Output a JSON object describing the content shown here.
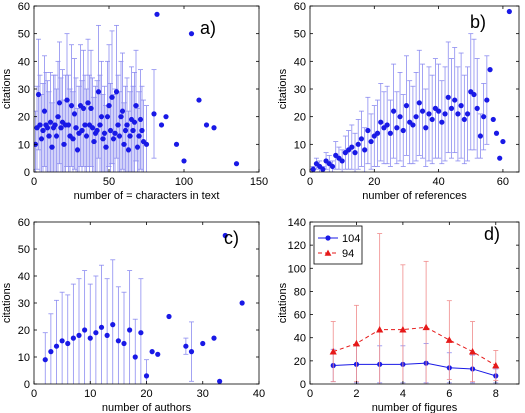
{
  "chart_data": [
    {
      "id": "a",
      "type": "scatter",
      "panel_label": "a)",
      "xlabel": "number of = characters in text",
      "ylabel": "citations",
      "xlim": [
        0,
        150
      ],
      "ylim": [
        0,
        60
      ],
      "xticks": [
        0,
        50,
        100,
        150
      ],
      "yticks": [
        0,
        10,
        20,
        30,
        40,
        50,
        60
      ],
      "series": [
        {
          "marker_color": "#1919e6",
          "err_color": "#8c8cf0",
          "x": [
            1,
            2,
            3,
            4,
            5,
            6,
            7,
            8,
            9,
            10,
            11,
            12,
            13,
            14,
            15,
            16,
            17,
            18,
            19,
            20,
            21,
            22,
            23,
            24,
            25,
            26,
            27,
            28,
            29,
            30,
            31,
            32,
            33,
            34,
            35,
            36,
            37,
            38,
            39,
            40,
            41,
            42,
            43,
            44,
            45,
            46,
            47,
            48,
            49,
            50,
            51,
            52,
            53,
            54,
            55,
            56,
            57,
            58,
            59,
            60,
            61,
            62,
            63,
            64,
            65,
            66,
            67,
            68,
            69,
            70,
            71,
            72,
            73,
            75,
            80,
            82,
            85,
            88,
            95,
            100,
            105,
            110,
            115,
            120,
            135
          ],
          "y": [
            10,
            16,
            28,
            17,
            12,
            15,
            22,
            17,
            16,
            13,
            18,
            9,
            16,
            17,
            13,
            20,
            25,
            16,
            18,
            10,
            17,
            26,
            17,
            13,
            24,
            12,
            21,
            16,
            8,
            14,
            24,
            15,
            23,
            17,
            13,
            25,
            17,
            23,
            16,
            11,
            14,
            15,
            29,
            17,
            20,
            12,
            14,
            9,
            20,
            24,
            15,
            27,
            12,
            14,
            29,
            17,
            13,
            20,
            22,
            10,
            15,
            17,
            8,
            13,
            19,
            15,
            18,
            24,
            9,
            13,
            19,
            15,
            11,
            10,
            21,
            57,
            17,
            20,
            10,
            4,
            50,
            26,
            17,
            16,
            3
          ],
          "err": [
            12,
            15,
            20,
            18,
            16,
            17,
            20,
            19,
            17,
            16,
            18,
            16,
            19,
            18,
            17,
            20,
            22,
            18,
            19,
            16,
            18,
            24,
            18,
            17,
            22,
            17,
            20,
            18,
            15,
            17,
            22,
            18,
            21,
            18,
            17,
            23,
            18,
            21,
            18,
            16,
            17,
            18,
            24,
            18,
            20,
            16,
            17,
            15,
            20,
            22,
            17,
            24,
            16,
            16,
            24,
            18,
            16,
            20,
            21,
            15,
            16,
            17,
            14,
            16,
            19,
            16,
            18,
            20,
            14,
            16,
            18,
            16,
            15,
            14,
            16,
            0,
            0,
            0,
            0,
            0,
            0,
            0,
            0,
            0,
            0
          ]
        }
      ]
    },
    {
      "id": "b",
      "type": "scatter",
      "panel_label": "b)",
      "xlabel": "number of references",
      "ylabel": "citations",
      "xlim": [
        0,
        65
      ],
      "ylim": [
        0,
        60
      ],
      "xticks": [
        0,
        20,
        40,
        60
      ],
      "yticks": [
        0,
        10,
        20,
        30,
        40,
        50,
        60
      ],
      "series": [
        {
          "marker_color": "#1919e6",
          "err_color": "#8c8cf0",
          "x": [
            1,
            2,
            3,
            4,
            5,
            6,
            7,
            8,
            9,
            10,
            11,
            12,
            13,
            14,
            15,
            16,
            17,
            18,
            19,
            20,
            21,
            22,
            23,
            24,
            25,
            26,
            27,
            28,
            29,
            30,
            31,
            32,
            33,
            34,
            35,
            36,
            37,
            38,
            39,
            40,
            41,
            42,
            43,
            44,
            45,
            46,
            47,
            48,
            49,
            50,
            51,
            52,
            53,
            54,
            55,
            56,
            57,
            58,
            59,
            60,
            62
          ],
          "y": [
            1,
            3,
            2,
            1,
            4,
            3,
            2,
            6,
            5,
            4,
            7,
            8,
            9,
            7,
            10,
            12,
            8,
            15,
            11,
            13,
            14,
            18,
            16,
            17,
            14,
            22,
            16,
            20,
            15,
            24,
            18,
            17,
            20,
            25,
            22,
            16,
            21,
            19,
            23,
            22,
            18,
            21,
            27,
            23,
            26,
            21,
            24,
            19,
            21,
            29,
            28,
            23,
            13,
            20,
            26,
            37,
            19,
            14,
            5,
            11,
            58
          ],
          "err": [
            1,
            2,
            2,
            1,
            3,
            3,
            2,
            5,
            4,
            4,
            6,
            7,
            8,
            7,
            9,
            10,
            8,
            12,
            10,
            11,
            12,
            14,
            13,
            14,
            12,
            17,
            13,
            16,
            13,
            18,
            15,
            14,
            16,
            19,
            17,
            14,
            17,
            16,
            18,
            17,
            15,
            17,
            20,
            18,
            19,
            17,
            19,
            16,
            17,
            21,
            20,
            18,
            8,
            12,
            16,
            0,
            0,
            0,
            0,
            0,
            0
          ]
        }
      ]
    },
    {
      "id": "c",
      "type": "scatter",
      "panel_label": "c)",
      "xlabel": "number of authors",
      "ylabel": "citations",
      "xlim": [
        0,
        40
      ],
      "ylim": [
        0,
        60
      ],
      "xticks": [
        0,
        10,
        20,
        30,
        40
      ],
      "yticks": [
        0,
        10,
        20,
        30,
        40,
        50,
        60
      ],
      "series": [
        {
          "marker_color": "#1919e6",
          "err_color": "#8c8cf0",
          "x": [
            2,
            3,
            4,
            5,
            6,
            7,
            8,
            9,
            10,
            11,
            12,
            13,
            14,
            15,
            16,
            17,
            18,
            19,
            20,
            21,
            22,
            24,
            27,
            28,
            30,
            32,
            33,
            34,
            37
          ],
          "y": [
            9,
            12,
            14,
            16,
            15,
            17,
            18,
            20,
            17,
            19,
            21,
            18,
            22,
            16,
            15,
            20,
            10,
            19,
            3,
            12,
            11,
            25,
            14,
            12,
            15,
            17,
            1,
            55,
            30
          ],
          "err": [
            10,
            14,
            17,
            18,
            18,
            20,
            21,
            22,
            20,
            21,
            23,
            21,
            24,
            20,
            19,
            22,
            14,
            20,
            6,
            0,
            0,
            0,
            3,
            11,
            0,
            0,
            0,
            0,
            0
          ]
        }
      ]
    },
    {
      "id": "d",
      "type": "line",
      "panel_label": "d)",
      "xlabel": "number of figures",
      "ylabel": "citations",
      "xlim": [
        0,
        9
      ],
      "ylim": [
        0,
        140
      ],
      "xticks": [
        0,
        2,
        4,
        6,
        8
      ],
      "yticks": [
        0,
        20,
        40,
        60,
        80,
        100,
        120,
        140
      ],
      "legend": {
        "placement": "top-left"
      },
      "series": [
        {
          "name": "104",
          "color": "#1919e6",
          "err_color": "#8c8cf0",
          "marker": "circle",
          "dashed": false,
          "x": [
            1,
            2,
            3,
            4,
            5,
            6,
            7,
            8
          ],
          "y": [
            16,
            17,
            17,
            17,
            18,
            14,
            13,
            7
          ],
          "err": [
            14,
            16,
            16,
            16,
            17,
            13,
            12,
            6
          ]
        },
        {
          "name": "94",
          "color": "#e61919",
          "err_color": "#f08c8c",
          "marker": "triangle",
          "dashed": true,
          "x": [
            1,
            2,
            3,
            4,
            5,
            6,
            7,
            8
          ],
          "y": [
            28,
            35,
            47,
            47,
            49,
            38,
            28,
            16
          ],
          "err": [
            26,
            33,
            83,
            56,
            57,
            34,
            26,
            13
          ]
        }
      ]
    }
  ]
}
